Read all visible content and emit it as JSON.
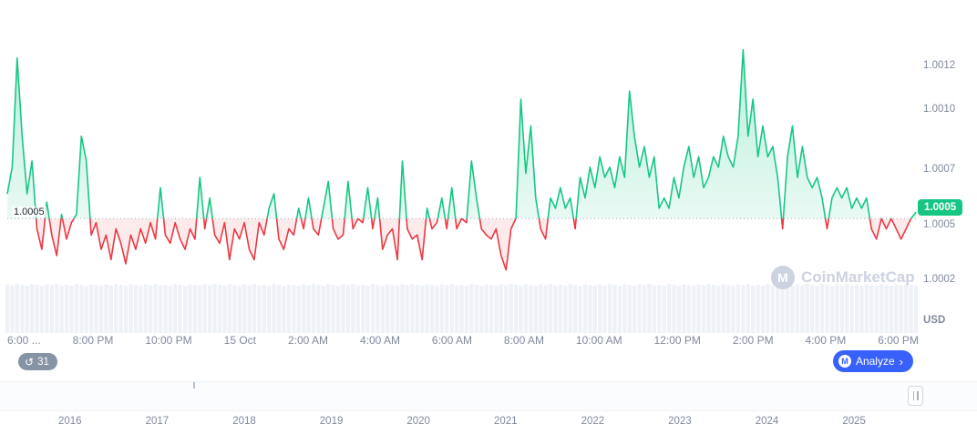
{
  "chart_data": {
    "type": "line",
    "title": "",
    "x_ticks": [
      "6:00 ...",
      "8:00 PM",
      "10:00 PM",
      "15 Oct",
      "2:00 AM",
      "4:00 AM",
      "6:00 AM",
      "8:00 AM",
      "10:00 AM",
      "12:00 PM",
      "2:00 PM",
      "4:00 PM",
      "6:00 PM"
    ],
    "y_ticks": [
      "1.0012",
      "1.0010",
      "1.0007",
      "1.0005",
      "1.0002"
    ],
    "y_unit": "USD",
    "baseline": 1.0005,
    "baseline_label": "1.0005",
    "current_price": "1.0005",
    "ylim": [
      1.0002,
      1.00135
    ],
    "grid": "dotted-baseline-only",
    "legend": "none",
    "colors": {
      "up": "#16c784",
      "down": "#ea3943",
      "up_fill": "rgba(22,199,132,0.14)",
      "down_fill": "rgba(234,57,67,0.10)",
      "volume": "#eef1f6"
    },
    "series": [
      {
        "name": "price",
        "values": [
          1.00062,
          1.00075,
          1.00128,
          1.0009,
          1.00062,
          1.00078,
          1.00045,
          1.00035,
          1.00058,
          1.00042,
          1.00032,
          1.00052,
          1.0004,
          1.00048,
          1.00052,
          1.0009,
          1.00078,
          1.00042,
          1.00048,
          1.00035,
          1.00042,
          1.0003,
          1.00045,
          1.00038,
          1.00028,
          1.00042,
          1.00035,
          1.00045,
          1.00038,
          1.00048,
          1.0004,
          1.00065,
          1.00042,
          1.00038,
          1.00048,
          1.0004,
          1.00035,
          1.00045,
          1.0004,
          1.0007,
          1.00045,
          1.0006,
          1.00042,
          1.00038,
          1.00048,
          1.0003,
          1.00045,
          1.0004,
          1.00048,
          1.00035,
          1.0003,
          1.00048,
          1.00042,
          1.00055,
          1.00062,
          1.0004,
          1.00035,
          1.00045,
          1.00042,
          1.00055,
          1.00045,
          1.0006,
          1.00045,
          1.00042,
          1.00055,
          1.00068,
          1.00045,
          1.0004,
          1.00042,
          1.00068,
          1.00045,
          1.0005,
          1.00048,
          1.00065,
          1.00045,
          1.0006,
          1.00035,
          1.00042,
          1.00045,
          1.0003,
          1.00078,
          1.00045,
          1.0004,
          1.00042,
          1.0003,
          1.00055,
          1.00045,
          1.00048,
          1.0006,
          1.00045,
          1.00065,
          1.00045,
          1.0005,
          1.00048,
          1.00078,
          1.0006,
          1.00045,
          1.00042,
          1.0004,
          1.00045,
          1.00032,
          1.00025,
          1.00045,
          1.0005,
          1.00108,
          1.00072,
          1.00095,
          1.0006,
          1.00045,
          1.0004,
          1.0006,
          1.00055,
          1.00065,
          1.00055,
          1.0006,
          1.00045,
          1.0007,
          1.0006,
          1.00075,
          1.00065,
          1.0008,
          1.0007,
          1.00075,
          1.00065,
          1.0008,
          1.0007,
          1.00112,
          1.0009,
          1.00075,
          1.00085,
          1.0007,
          1.0008,
          1.00055,
          1.0006,
          1.00055,
          1.0007,
          1.0006,
          1.00075,
          1.00085,
          1.0007,
          1.0008,
          1.00065,
          1.0007,
          1.0008,
          1.00075,
          1.0009,
          1.0008,
          1.00075,
          1.0009,
          1.00132,
          1.0009,
          1.00108,
          1.0008,
          1.00095,
          1.0008,
          1.00085,
          1.0007,
          1.00045,
          1.0008,
          1.00095,
          1.0007,
          1.00085,
          1.0007,
          1.00065,
          1.0007,
          1.0006,
          1.00045,
          1.0006,
          1.00065,
          1.0006,
          1.00065,
          1.00055,
          1.0006,
          1.00055,
          1.0006,
          1.00045,
          1.0004,
          1.0005,
          1.00045,
          1.0005,
          1.00045,
          1.0004,
          1.00045,
          1.0005,
          1.00053
        ]
      }
    ],
    "volume_heights": [
      0.95,
      0.88,
      1.0,
      0.92,
      0.85,
      0.97,
      0.9,
      0.83,
      0.96,
      0.89,
      1.0,
      0.87,
      0.93,
      0.85,
      0.98,
      0.91,
      0.84,
      0.95,
      0.9,
      0.86
    ]
  },
  "branding": {
    "watermark": "CoinMarketCap"
  },
  "controls": {
    "history_badge": "31",
    "analyze_label": "Analyze"
  },
  "icons": {
    "history": "↺",
    "chevron": "›",
    "logo_letter": "M"
  },
  "navigator": {
    "years": [
      "2016",
      "2017",
      "2018",
      "2019",
      "2020",
      "2021",
      "2022",
      "2023",
      "2024",
      "2025"
    ]
  }
}
